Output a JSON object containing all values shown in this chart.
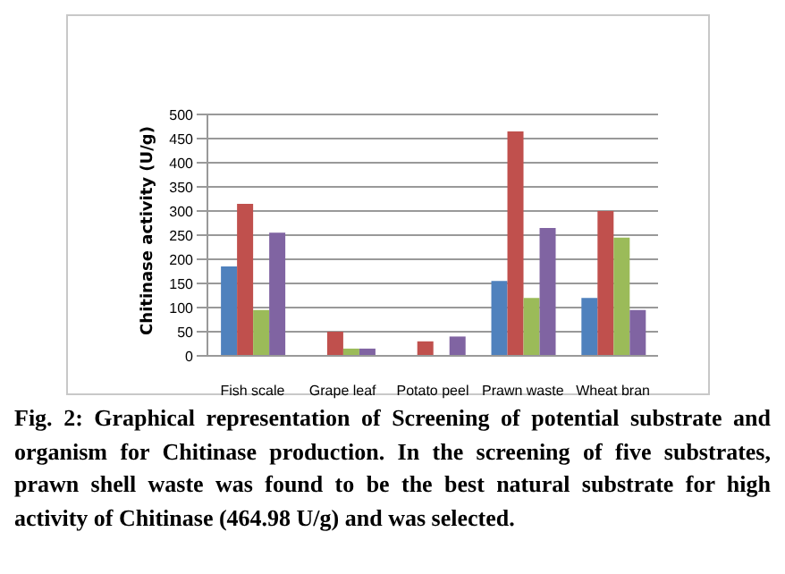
{
  "chart_data": {
    "type": "bar",
    "ylabel": "Chitinase activity (U/g)",
    "categories": [
      "Fish scale",
      "Grape leaf",
      "Potato peel",
      "Prawn waste",
      "Wheat bran"
    ],
    "series": [
      {
        "color": "#4f81bd",
        "values": [
          185,
          null,
          null,
          155,
          120
        ]
      },
      {
        "color": "#c0504d",
        "values": [
          315,
          50,
          30,
          465,
          300
        ]
      },
      {
        "color": "#9bbb59",
        "values": [
          95,
          15,
          null,
          120,
          245
        ]
      },
      {
        "color": "#8064a2",
        "values": [
          255,
          15,
          40,
          265,
          95
        ]
      }
    ],
    "ylim": [
      0,
      500
    ],
    "yticks": [
      0,
      50,
      100,
      150,
      200,
      250,
      300,
      350,
      400,
      450,
      500
    ],
    "grid": "y",
    "legend": false,
    "annotations": [
      "Fig. 2: Graphical representation of Screening of potential substrate and organism for Chitinase production. In the screening of five substrates, prawn shell waste was found to be the best natural substrate for high activity of Chitinase (464.98 U/g) and was selected."
    ]
  }
}
